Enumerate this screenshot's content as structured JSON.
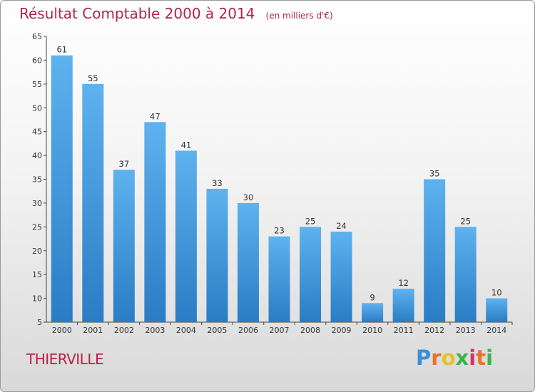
{
  "title": "Résultat Comptable 2000 à 2014",
  "unit": "(en milliers d'€)",
  "city": "THIERVILLE",
  "logo": {
    "letters": [
      "P",
      "r",
      "o",
      "x",
      "i",
      "t",
      "i"
    ],
    "colors": [
      "#3b8fd6",
      "#e8732a",
      "#e3c12b",
      "#3bb34a",
      "#d6336c",
      "#e8732a",
      "#3bb34a"
    ]
  },
  "colors": {
    "bar_light": "#5eb2ee",
    "bar_dark": "#2a7cc4",
    "text": "#b5234a"
  },
  "chart_data": {
    "type": "bar",
    "categories": [
      "2000",
      "2001",
      "2002",
      "2003",
      "2004",
      "2005",
      "2006",
      "2007",
      "2008",
      "2009",
      "2010",
      "2011",
      "2012",
      "2013",
      "2014"
    ],
    "values": [
      61,
      55,
      37,
      47,
      41,
      33,
      30,
      23,
      25,
      24,
      9,
      12,
      35,
      25,
      10
    ],
    "ylim": [
      5,
      65
    ],
    "yticks": [
      5,
      10,
      15,
      20,
      25,
      30,
      35,
      40,
      45,
      50,
      55,
      60,
      65
    ],
    "grid": false,
    "data_labels": true
  }
}
